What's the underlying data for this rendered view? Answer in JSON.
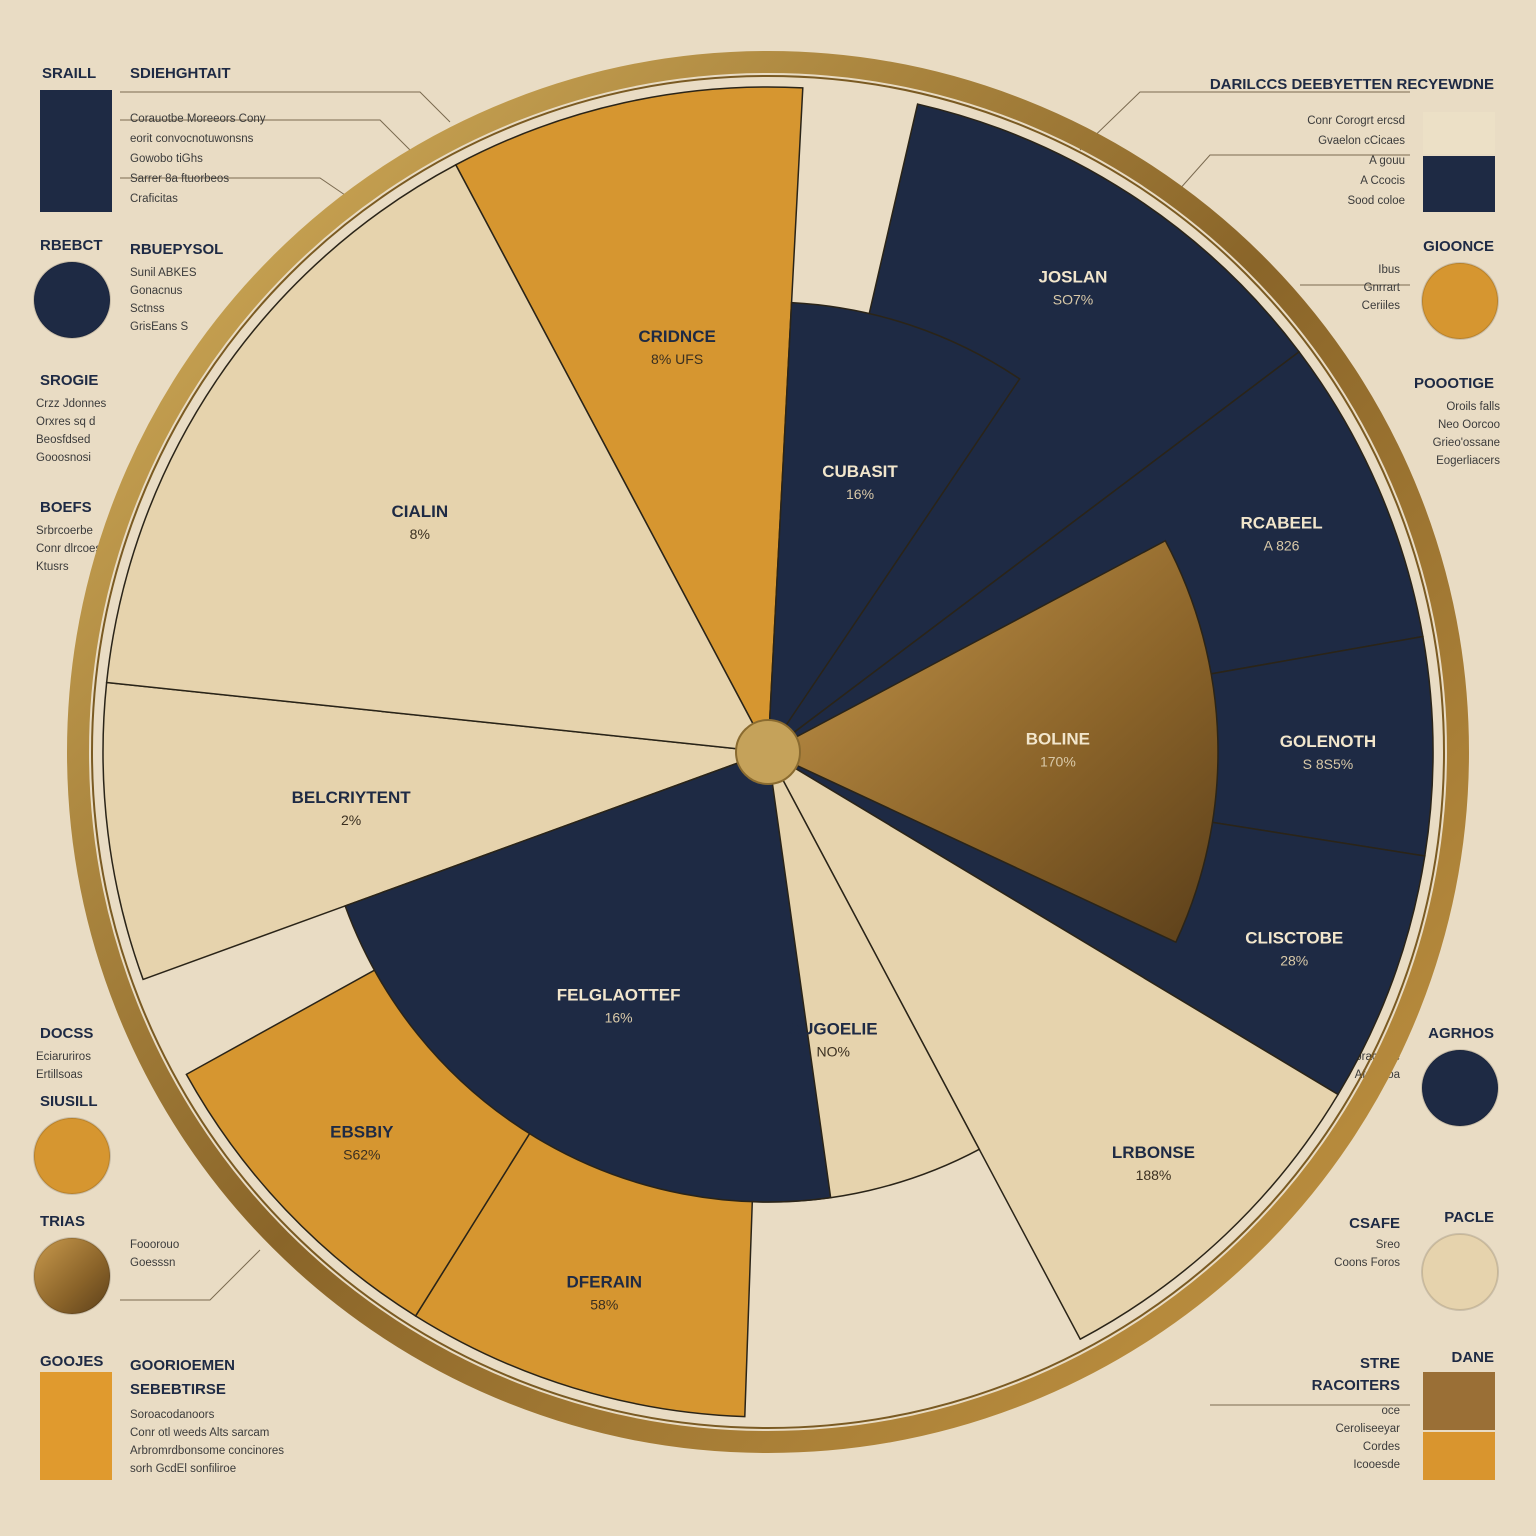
{
  "header": {
    "left_a": "SRAILL",
    "left_b": "SDIEHGHTAIT",
    "right": "DARILCCS DEEBYETTEN RECYEWDNE"
  },
  "colors": {
    "navy": "#1e2a44",
    "amber": "#d69630",
    "cream": "#e6d3ad",
    "bronze": "#a07a3a",
    "gold_ring": "#b8913e"
  },
  "chart_data": {
    "type": "pie",
    "subtype": "sunburst",
    "segments": [
      {
        "label": "CRIDNCE",
        "value_text": "8% UFS",
        "color": "amber",
        "ring": "full"
      },
      {
        "label": "CUBASIT",
        "value_text": "16%",
        "color": "navy",
        "ring": "inner"
      },
      {
        "label": "JOSLAN",
        "value_text": "SO7%",
        "color": "navy",
        "ring": "outer"
      },
      {
        "label": "RCABEEL",
        "value_text": "A 826",
        "color": "navy",
        "ring": "outer"
      },
      {
        "label": "GOLENOTH",
        "value_text": "S 8S5%",
        "color": "navy",
        "ring": "outer"
      },
      {
        "label": "BOLINE",
        "value_text": "170%",
        "color": "bronze",
        "ring": "inner"
      },
      {
        "label": "CLISCTOBE",
        "value_text": "28%",
        "color": "navy",
        "ring": "outer"
      },
      {
        "label": "LRBONSE",
        "value_text": "188%",
        "color": "cream",
        "ring": "outer"
      },
      {
        "label": "CUGOELIE",
        "value_text": "NO%",
        "color": "cream",
        "ring": "inner"
      },
      {
        "label": "DFERAIN",
        "value_text": "58%",
        "color": "amber",
        "ring": "outer"
      },
      {
        "label": "EBSBIY",
        "value_text": "S62%",
        "color": "amber",
        "ring": "outer"
      },
      {
        "label": "FELGLAOTTEF",
        "value_text": "16%",
        "color": "navy",
        "ring": "inner"
      },
      {
        "label": "BELCRIYTENT",
        "value_text": "2%",
        "color": "cream",
        "ring": "full"
      },
      {
        "label": "CIALIN",
        "value_text": "8%",
        "color": "cream",
        "ring": "full"
      }
    ]
  },
  "left_panel": [
    {
      "title": "RBEBCT",
      "sub_title": "RBUEPYSOL",
      "lines": [
        "Sunil ABKES",
        "Gonacnus",
        "Sctnss",
        "GrisEans S"
      ],
      "swatch": "navy",
      "shape": "circle"
    },
    {
      "title": "SROGIE",
      "lines": [
        "Crzz Jdonnes",
        "Orxres sq d",
        "Beosfdsed",
        "Gooosnosi"
      ]
    },
    {
      "title": "BOEFS",
      "lines": [
        "Srbrcoerbe",
        "Conr dlrcoes",
        "Ktusrs"
      ]
    },
    {
      "title": "DOCSS",
      "lines": [
        "Eciaruriros",
        "Ertillsoas"
      ]
    },
    {
      "title": "SIUSILL",
      "swatch": "amber",
      "shape": "circle"
    },
    {
      "title": "TRIAS",
      "lines": [
        "Fooorouo",
        "Goesssn"
      ],
      "swatch": "bronze",
      "shape": "circle"
    },
    {
      "title": "GOOJES",
      "sub_title": "GOORIOEMEN",
      "sub_title_2": "SEBEBTIRSE",
      "lines": [
        "Soroacodanoors",
        "Conr otl weeds Alts sarcam",
        "Arbromrdbonsome concinores",
        "sorh GcdEl     sonfiliroe"
      ],
      "swatch": "amber",
      "shape": "square"
    }
  ],
  "right_panel": [
    {
      "title": "GIOONCE",
      "lines": [
        "Ibus",
        "Gnrrart",
        "Ceriiles"
      ],
      "swatch": "amber",
      "shape": "circle"
    },
    {
      "title": "POOOTIGE",
      "lines": [
        "Oroils falls",
        "Neo Oorcoo",
        "Grieo'ossane",
        "Eogerliacers"
      ]
    },
    {
      "title": "AGRHOS",
      "lines": [
        "Orcnmoracrnce",
        "Afonoloa"
      ],
      "swatch": "navy",
      "shape": "circle"
    },
    {
      "title": "PACLE",
      "sub_title": "CSAFE",
      "lines": [
        "Sreo",
        "Coons Foros"
      ],
      "swatch": "cream",
      "shape": "circle"
    },
    {
      "title": "DANE",
      "sub_title": "STRE",
      "sub_title_2": "RACOITERS",
      "lines": [
        "oce",
        "Ceroliseeyar",
        "Cordes",
        "Icooesde"
      ],
      "swatch": "bronze",
      "shape": "square"
    }
  ],
  "top_right_list": [
    "Conr Corogrt ercsd",
    "Gvaelon cCicaes",
    "A gouu",
    "A  Ccocis",
    "Sood coloe"
  ],
  "top_left_list": [
    "Corauotbe Moreeors Cony",
    "eorit convocnotuwonsns",
    "Gowobo tiGhs",
    "Sarrer 8a ftuorbeos",
    "Craficitas"
  ]
}
